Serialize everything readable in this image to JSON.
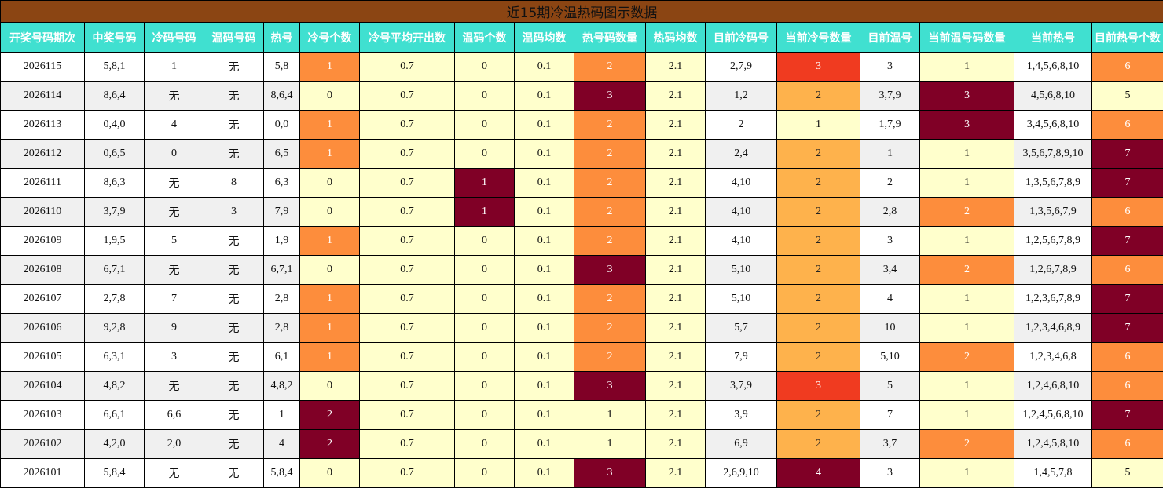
{
  "header": {
    "title": "近15期冷温热码图示数据"
  },
  "table": {
    "columns": [
      "开奖号码期次",
      "中奖号码",
      "冷码号码",
      "温码号码",
      "热号",
      "冷号个数",
      "冷号平均开出数",
      "温码个数",
      "温码均数",
      "热号码数量",
      "热码均数",
      "目前冷码号",
      "当前冷号数量",
      "目前温号",
      "当前温号码数量",
      "当前热号",
      "目前热号个数"
    ],
    "rows": [
      [
        2026115,
        "5,8,1",
        "1",
        "无",
        "5,8",
        1,
        0.7,
        0,
        0.1,
        2,
        2.1,
        "2,7,9",
        3,
        "3",
        1,
        "1,4,5,6,8,10",
        6
      ],
      [
        2026114,
        "8,6,4",
        "无",
        "无",
        "8,6,4",
        0,
        0.7,
        0,
        0.1,
        3,
        2.1,
        "1,2",
        2,
        "3,7,9",
        3,
        "4,5,6,8,10",
        5
      ],
      [
        2026113,
        "0,4,0",
        "4",
        "无",
        "0,0",
        1,
        0.7,
        0,
        0.1,
        2,
        2.1,
        "2",
        1,
        "1,7,9",
        3,
        "3,4,5,6,8,10",
        6
      ],
      [
        2026112,
        "0,6,5",
        "0",
        "无",
        "6,5",
        1,
        0.7,
        0,
        0.1,
        2,
        2.1,
        "2,4",
        2,
        "1",
        1,
        "3,5,6,7,8,9,10",
        7
      ],
      [
        2026111,
        "8,6,3",
        "无",
        "8",
        "6,3",
        0,
        0.7,
        1,
        0.1,
        2,
        2.1,
        "4,10",
        2,
        "2",
        1,
        "1,3,5,6,7,8,9",
        7
      ],
      [
        2026110,
        "3,7,9",
        "无",
        "3",
        "7,9",
        0,
        0.7,
        1,
        0.1,
        2,
        2.1,
        "4,10",
        2,
        "2,8",
        2,
        "1,3,5,6,7,9",
        6
      ],
      [
        2026109,
        "1,9,5",
        "5",
        "无",
        "1,9",
        1,
        0.7,
        0,
        0.1,
        2,
        2.1,
        "4,10",
        2,
        "3",
        1,
        "1,2,5,6,7,8,9",
        7
      ],
      [
        2026108,
        "6,7,1",
        "无",
        "无",
        "6,7,1",
        0,
        0.7,
        0,
        0.1,
        3,
        2.1,
        "5,10",
        2,
        "3,4",
        2,
        "1,2,6,7,8,9",
        6
      ],
      [
        2026107,
        "2,7,8",
        "7",
        "无",
        "2,8",
        1,
        0.7,
        0,
        0.1,
        2,
        2.1,
        "5,10",
        2,
        "4",
        1,
        "1,2,3,6,7,8,9",
        7
      ],
      [
        2026106,
        "9,2,8",
        "9",
        "无",
        "2,8",
        1,
        0.7,
        0,
        0.1,
        2,
        2.1,
        "5,7",
        2,
        "10",
        1,
        "1,2,3,4,6,8,9",
        7
      ],
      [
        2026105,
        "6,3,1",
        "3",
        "无",
        "6,1",
        1,
        0.7,
        0,
        0.1,
        2,
        2.1,
        "7,9",
        2,
        "5,10",
        2,
        "1,2,3,4,6,8",
        6
      ],
      [
        2026104,
        "4,8,2",
        "无",
        "无",
        "4,8,2",
        0,
        0.7,
        0,
        0.1,
        3,
        2.1,
        "3,7,9",
        3,
        "5",
        1,
        "1,2,4,6,8,10",
        6
      ],
      [
        2026103,
        "6,6,1",
        "6,6",
        "无",
        "1",
        2,
        0.7,
        0,
        0.1,
        1,
        2.1,
        "3,9",
        2,
        "7",
        1,
        "1,2,4,5,6,8,10",
        7
      ],
      [
        2026102,
        "4,2,0",
        "2,0",
        "无",
        "4",
        2,
        0.7,
        0,
        0.1,
        1,
        2.1,
        "6,9",
        2,
        "3,7",
        2,
        "1,2,4,5,8,10",
        6
      ],
      [
        2026101,
        "5,8,4",
        "无",
        "无",
        "5,8,4",
        0,
        0.7,
        0,
        0.1,
        3,
        2.1,
        "2,6,9,10",
        4,
        "3",
        1,
        "1,4,5,7,8",
        5
      ]
    ]
  }
}
